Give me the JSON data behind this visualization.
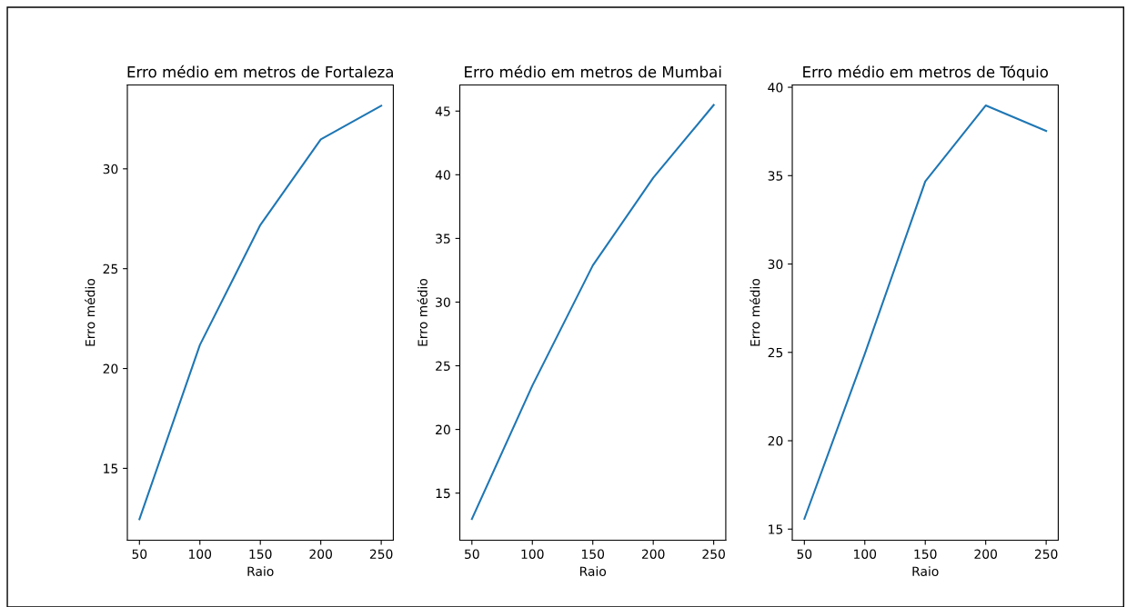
{
  "chart_data": [
    {
      "type": "line",
      "title": "Erro médio em metros de Fortaleza",
      "xlabel": "Raio",
      "ylabel": "Erro médio",
      "x": [
        50,
        100,
        150,
        200,
        250
      ],
      "series": [
        {
          "color": "#1f77b4",
          "values": [
            12.45,
            21.18,
            27.19,
            31.48,
            33.16
          ]
        }
      ],
      "xlim": [
        40,
        260
      ],
      "xticks": [
        50,
        100,
        150,
        200,
        250
      ],
      "ylim": [
        11.4,
        34.2
      ],
      "yticks": [
        15,
        20,
        25,
        30
      ]
    },
    {
      "type": "line",
      "title": "Erro médio em metros de Mumbai",
      "xlabel": "Raio",
      "ylabel": "Erro médio",
      "x": [
        50,
        100,
        150,
        200,
        250
      ],
      "series": [
        {
          "color": "#1f77b4",
          "values": [
            12.97,
            23.44,
            32.88,
            39.76,
            45.48
          ]
        }
      ],
      "xlim": [
        40,
        260
      ],
      "xticks": [
        50,
        100,
        150,
        200,
        250
      ],
      "ylim": [
        11.3,
        47.05
      ],
      "yticks": [
        15,
        20,
        25,
        30,
        35,
        40,
        45
      ]
    },
    {
      "type": "line",
      "title": "Erro médio em metros de Tóquio",
      "xlabel": "Raio",
      "ylabel": "Erro médio",
      "x": [
        50,
        100,
        150,
        200,
        250
      ],
      "series": [
        {
          "color": "#1f77b4",
          "values": [
            15.58,
            24.92,
            34.67,
            38.97,
            37.53
          ]
        }
      ],
      "xlim": [
        40,
        260
      ],
      "xticks": [
        50,
        100,
        150,
        200,
        250
      ],
      "ylim": [
        14.37,
        40.13
      ],
      "yticks": [
        15,
        20,
        25,
        30,
        35,
        40
      ]
    }
  ]
}
